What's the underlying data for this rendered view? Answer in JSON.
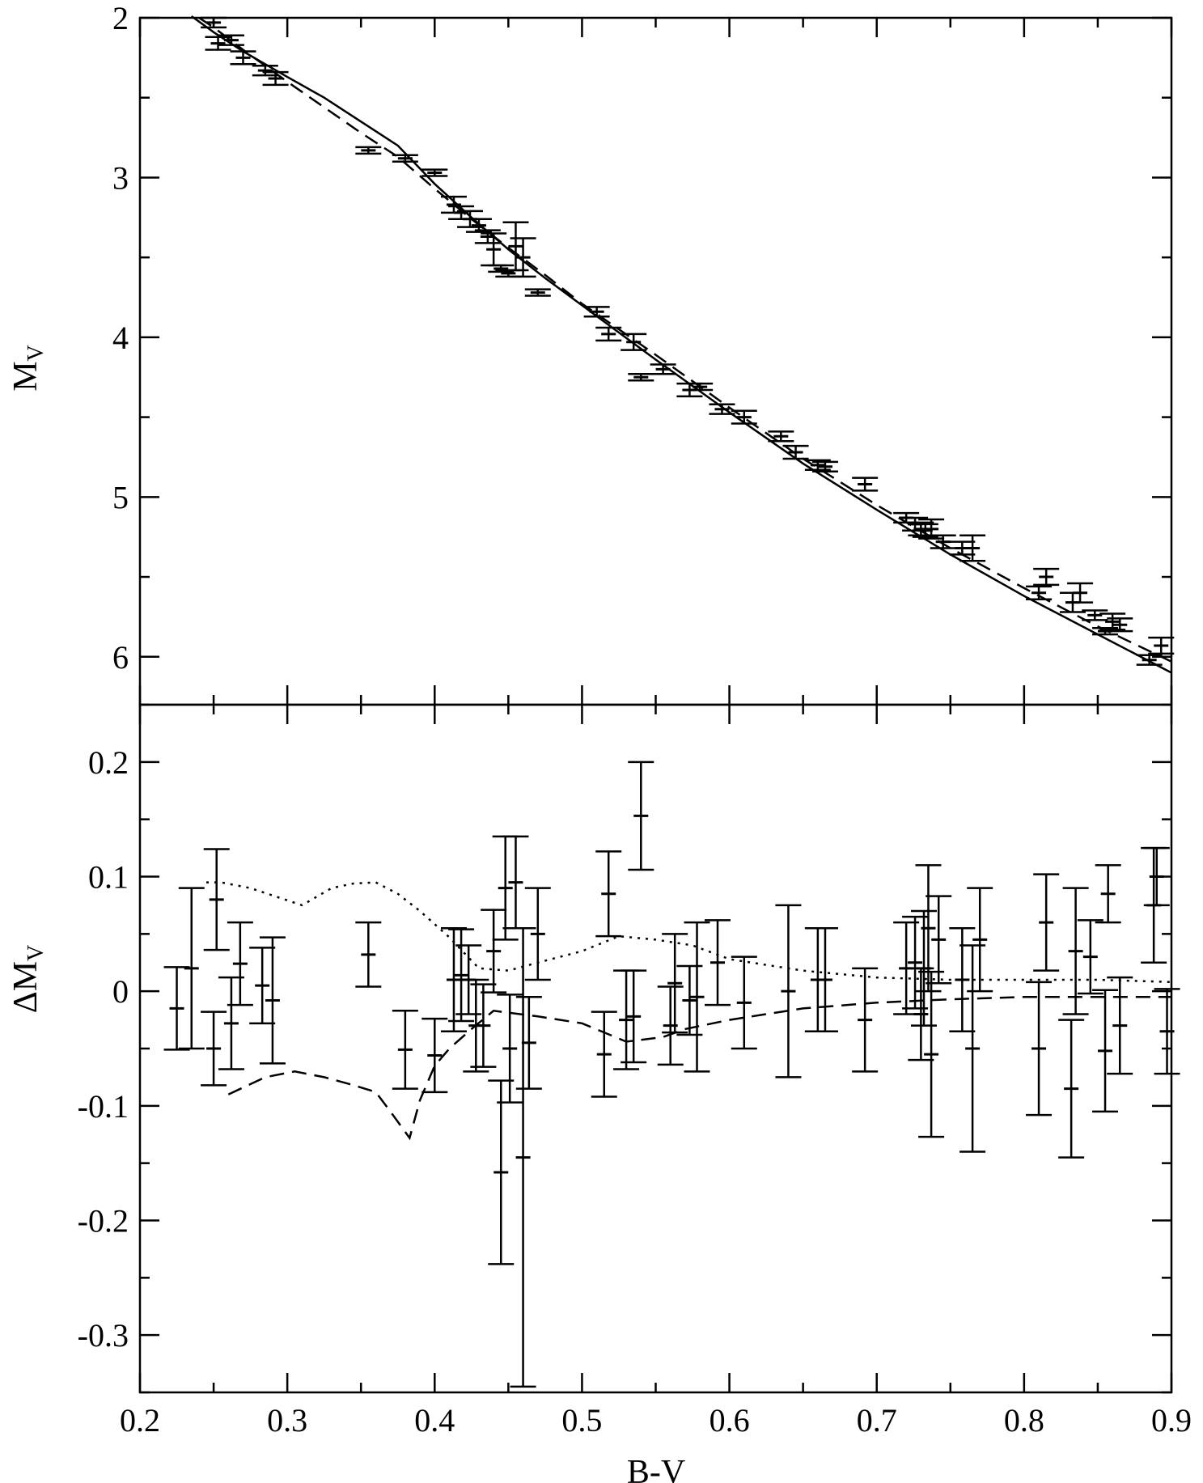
{
  "chart_data": [
    {
      "type": "scatter",
      "panel": "top",
      "xlabel": "",
      "ylabel": "M",
      "ylabel_sub": "V",
      "xlim": [
        0.2,
        0.9
      ],
      "ylim": [
        6.3,
        2.0
      ],
      "y_inverted": true,
      "xticks": [
        0.2,
        0.3,
        0.4,
        0.5,
        0.6,
        0.7,
        0.8,
        0.9
      ],
      "yticks": [
        2,
        3,
        4,
        5,
        6
      ],
      "ytick_labels": [
        "2",
        "3",
        "4",
        "5",
        "6"
      ],
      "points": [
        {
          "x": 0.25,
          "y": 2.03,
          "e": 0.03
        },
        {
          "x": 0.253,
          "y": 2.16,
          "e": 0.04
        },
        {
          "x": 0.262,
          "y": 2.14,
          "e": 0.03
        },
        {
          "x": 0.27,
          "y": 2.25,
          "e": 0.04
        },
        {
          "x": 0.285,
          "y": 2.33,
          "e": 0.03
        },
        {
          "x": 0.292,
          "y": 2.38,
          "e": 0.04
        },
        {
          "x": 0.355,
          "y": 2.83,
          "e": 0.02
        },
        {
          "x": 0.38,
          "y": 2.88,
          "e": 0.02
        },
        {
          "x": 0.4,
          "y": 2.97,
          "e": 0.02
        },
        {
          "x": 0.413,
          "y": 3.17,
          "e": 0.05
        },
        {
          "x": 0.418,
          "y": 3.22,
          "e": 0.04
        },
        {
          "x": 0.424,
          "y": 3.26,
          "e": 0.05
        },
        {
          "x": 0.43,
          "y": 3.3,
          "e": 0.04
        },
        {
          "x": 0.436,
          "y": 3.37,
          "e": 0.04
        },
        {
          "x": 0.44,
          "y": 3.45,
          "e": 0.1
        },
        {
          "x": 0.445,
          "y": 3.57,
          "e": 0.02
        },
        {
          "x": 0.45,
          "y": 3.6,
          "e": 0.02
        },
        {
          "x": 0.455,
          "y": 3.43,
          "e": 0.15
        },
        {
          "x": 0.46,
          "y": 3.5,
          "e": 0.12
        },
        {
          "x": 0.47,
          "y": 3.72,
          "e": 0.02
        },
        {
          "x": 0.51,
          "y": 3.84,
          "e": 0.03
        },
        {
          "x": 0.518,
          "y": 3.98,
          "e": 0.04
        },
        {
          "x": 0.535,
          "y": 4.03,
          "e": 0.05
        },
        {
          "x": 0.54,
          "y": 4.25,
          "e": 0.02
        },
        {
          "x": 0.555,
          "y": 4.2,
          "e": 0.03
        },
        {
          "x": 0.573,
          "y": 4.33,
          "e": 0.04
        },
        {
          "x": 0.58,
          "y": 4.31,
          "e": 0.02
        },
        {
          "x": 0.595,
          "y": 4.45,
          "e": 0.03
        },
        {
          "x": 0.61,
          "y": 4.5,
          "e": 0.04
        },
        {
          "x": 0.635,
          "y": 4.62,
          "e": 0.03
        },
        {
          "x": 0.645,
          "y": 4.72,
          "e": 0.04
        },
        {
          "x": 0.66,
          "y": 4.8,
          "e": 0.03
        },
        {
          "x": 0.665,
          "y": 4.81,
          "e": 0.03
        },
        {
          "x": 0.692,
          "y": 4.92,
          "e": 0.04
        },
        {
          "x": 0.72,
          "y": 5.13,
          "e": 0.03
        },
        {
          "x": 0.726,
          "y": 5.17,
          "e": 0.04
        },
        {
          "x": 0.73,
          "y": 5.2,
          "e": 0.04
        },
        {
          "x": 0.733,
          "y": 5.21,
          "e": 0.04
        },
        {
          "x": 0.737,
          "y": 5.2,
          "e": 0.06
        },
        {
          "x": 0.745,
          "y": 5.28,
          "e": 0.04
        },
        {
          "x": 0.758,
          "y": 5.32,
          "e": 0.04
        },
        {
          "x": 0.765,
          "y": 5.32,
          "e": 0.08
        },
        {
          "x": 0.81,
          "y": 5.6,
          "e": 0.04
        },
        {
          "x": 0.815,
          "y": 5.5,
          "e": 0.05
        },
        {
          "x": 0.833,
          "y": 5.66,
          "e": 0.06
        },
        {
          "x": 0.838,
          "y": 5.6,
          "e": 0.06
        },
        {
          "x": 0.848,
          "y": 5.74,
          "e": 0.03
        },
        {
          "x": 0.855,
          "y": 5.84,
          "e": 0.02
        },
        {
          "x": 0.86,
          "y": 5.78,
          "e": 0.05
        },
        {
          "x": 0.865,
          "y": 5.8,
          "e": 0.04
        },
        {
          "x": 0.885,
          "y": 6.02,
          "e": 0.03
        },
        {
          "x": 0.893,
          "y": 5.93,
          "e": 0.05
        }
      ],
      "series": [
        {
          "style": "solid",
          "x": [
            0.235,
            0.25,
            0.27,
            0.3,
            0.325,
            0.35,
            0.375,
            0.4,
            0.425,
            0.45,
            0.475,
            0.5,
            0.55,
            0.6,
            0.65,
            0.7,
            0.75,
            0.8,
            0.85,
            0.9
          ],
          "y": [
            1.99,
            2.09,
            2.21,
            2.37,
            2.5,
            2.65,
            2.8,
            3.04,
            3.25,
            3.45,
            3.63,
            3.8,
            4.14,
            4.47,
            4.79,
            5.08,
            5.36,
            5.62,
            5.86,
            6.1
          ]
        },
        {
          "style": "dashed",
          "x": [
            0.24,
            0.25,
            0.27,
            0.3,
            0.325,
            0.35,
            0.375,
            0.4,
            0.425,
            0.45,
            0.475,
            0.5,
            0.55,
            0.6,
            0.65,
            0.7,
            0.75,
            0.8,
            0.85,
            0.9
          ],
          "y": [
            2.0,
            2.06,
            2.2,
            2.4,
            2.56,
            2.72,
            2.87,
            3.07,
            3.26,
            3.44,
            3.61,
            3.79,
            4.11,
            4.44,
            4.76,
            5.05,
            5.32,
            5.57,
            5.81,
            6.03
          ]
        }
      ]
    },
    {
      "type": "scatter",
      "panel": "bottom",
      "xlabel": "B-V",
      "ylabel": "ΔM",
      "ylabel_sub": "V",
      "xlim": [
        0.2,
        0.9
      ],
      "ylim": [
        -0.35,
        0.25
      ],
      "xticks": [
        0.2,
        0.3,
        0.4,
        0.5,
        0.6,
        0.7,
        0.8,
        0.9
      ],
      "xtick_labels": [
        "0.2",
        "0.3",
        "0.4",
        "0.5",
        "0.6",
        "0.7",
        "0.8",
        "0.9"
      ],
      "yticks": [
        -0.3,
        -0.2,
        -0.1,
        0,
        0.1,
        0.2
      ],
      "ytick_labels": [
        "-0.3",
        "-0.2",
        "-0.1",
        "0",
        "0.1",
        "0.2"
      ],
      "points": [
        {
          "x": 0.225,
          "y": -0.015,
          "e": 0.036
        },
        {
          "x": 0.235,
          "y": 0.02,
          "e": 0.07
        },
        {
          "x": 0.25,
          "y": -0.05,
          "e": 0.032
        },
        {
          "x": 0.252,
          "y": 0.08,
          "e": 0.044
        },
        {
          "x": 0.262,
          "y": -0.028,
          "e": 0.04
        },
        {
          "x": 0.268,
          "y": 0.024,
          "e": 0.036
        },
        {
          "x": 0.283,
          "y": 0.005,
          "e": 0.033
        },
        {
          "x": 0.29,
          "y": -0.008,
          "e": 0.055
        },
        {
          "x": 0.355,
          "y": 0.032,
          "e": 0.028
        },
        {
          "x": 0.38,
          "y": -0.051,
          "e": 0.034
        },
        {
          "x": 0.4,
          "y": -0.056,
          "e": 0.032
        },
        {
          "x": 0.413,
          "y": 0.01,
          "e": 0.045
        },
        {
          "x": 0.418,
          "y": 0.014,
          "e": 0.04
        },
        {
          "x": 0.423,
          "y": 0.01,
          "e": 0.03
        },
        {
          "x": 0.428,
          "y": -0.03,
          "e": 0.04
        },
        {
          "x": 0.433,
          "y": -0.03,
          "e": 0.036
        },
        {
          "x": 0.44,
          "y": 0.035,
          "e": 0.036
        },
        {
          "x": 0.445,
          "y": -0.158,
          "e": 0.08
        },
        {
          "x": 0.448,
          "y": 0.09,
          "e": 0.045
        },
        {
          "x": 0.451,
          "y": -0.05,
          "e": 0.047
        },
        {
          "x": 0.455,
          "y": 0.095,
          "e": 0.04
        },
        {
          "x": 0.46,
          "y": -0.145,
          "e": 0.2
        },
        {
          "x": 0.464,
          "y": -0.045,
          "e": 0.04
        },
        {
          "x": 0.47,
          "y": 0.05,
          "e": 0.04
        },
        {
          "x": 0.515,
          "y": -0.055,
          "e": 0.037
        },
        {
          "x": 0.518,
          "y": 0.085,
          "e": 0.037
        },
        {
          "x": 0.53,
          "y": -0.025,
          "e": 0.043
        },
        {
          "x": 0.535,
          "y": -0.022,
          "e": 0.04
        },
        {
          "x": 0.54,
          "y": 0.153,
          "e": 0.047
        },
        {
          "x": 0.56,
          "y": -0.03,
          "e": 0.034
        },
        {
          "x": 0.563,
          "y": 0.007,
          "e": 0.043
        },
        {
          "x": 0.573,
          "y": -0.008,
          "e": 0.03
        },
        {
          "x": 0.578,
          "y": -0.005,
          "e": 0.065
        },
        {
          "x": 0.592,
          "y": 0.025,
          "e": 0.037
        },
        {
          "x": 0.61,
          "y": -0.01,
          "e": 0.04
        },
        {
          "x": 0.64,
          "y": 0.0,
          "e": 0.075
        },
        {
          "x": 0.66,
          "y": 0.01,
          "e": 0.045
        },
        {
          "x": 0.665,
          "y": 0.01,
          "e": 0.045
        },
        {
          "x": 0.692,
          "y": -0.025,
          "e": 0.045
        },
        {
          "x": 0.72,
          "y": 0.02,
          "e": 0.04
        },
        {
          "x": 0.726,
          "y": 0.025,
          "e": 0.04
        },
        {
          "x": 0.73,
          "y": -0.02,
          "e": 0.04
        },
        {
          "x": 0.732,
          "y": 0.02,
          "e": 0.05
        },
        {
          "x": 0.735,
          "y": 0.055,
          "e": 0.055
        },
        {
          "x": 0.737,
          "y": -0.055,
          "e": 0.072
        },
        {
          "x": 0.742,
          "y": 0.045,
          "e": 0.038
        },
        {
          "x": 0.758,
          "y": 0.01,
          "e": 0.045
        },
        {
          "x": 0.765,
          "y": -0.05,
          "e": 0.09
        },
        {
          "x": 0.77,
          "y": 0.045,
          "e": 0.045
        },
        {
          "x": 0.81,
          "y": -0.05,
          "e": 0.058
        },
        {
          "x": 0.815,
          "y": 0.06,
          "e": 0.042
        },
        {
          "x": 0.832,
          "y": -0.085,
          "e": 0.06
        },
        {
          "x": 0.835,
          "y": 0.035,
          "e": 0.055
        },
        {
          "x": 0.845,
          "y": 0.03,
          "e": 0.032
        },
        {
          "x": 0.855,
          "y": -0.052,
          "e": 0.053
        },
        {
          "x": 0.857,
          "y": 0.085,
          "e": 0.025
        },
        {
          "x": 0.865,
          "y": -0.03,
          "e": 0.042
        },
        {
          "x": 0.888,
          "y": 0.075,
          "e": 0.05
        },
        {
          "x": 0.89,
          "y": 0.1,
          "e": 0.025
        },
        {
          "x": 0.897,
          "y": -0.035,
          "e": 0.037
        }
      ],
      "series": [
        {
          "style": "dotted",
          "x": [
            0.245,
            0.255,
            0.275,
            0.31,
            0.33,
            0.345,
            0.36,
            0.375,
            0.39,
            0.41,
            0.43,
            0.45,
            0.47,
            0.5,
            0.525,
            0.55,
            0.575,
            0.6,
            0.65,
            0.7,
            0.75,
            0.8,
            0.85,
            0.9
          ],
          "y": [
            0.095,
            0.095,
            0.09,
            0.075,
            0.09,
            0.094,
            0.095,
            0.085,
            0.07,
            0.047,
            0.02,
            0.018,
            0.025,
            0.035,
            0.048,
            0.045,
            0.04,
            0.028,
            0.018,
            0.012,
            0.01,
            0.01,
            0.01,
            0.008
          ]
        },
        {
          "style": "dashed",
          "x": [
            0.26,
            0.285,
            0.305,
            0.325,
            0.345,
            0.36,
            0.37,
            0.383,
            0.39,
            0.4,
            0.41,
            0.425,
            0.44,
            0.47,
            0.5,
            0.53,
            0.555,
            0.57,
            0.6,
            0.65,
            0.7,
            0.75,
            0.8,
            0.85,
            0.9
          ],
          "y": [
            -0.09,
            -0.075,
            -0.07,
            -0.075,
            -0.082,
            -0.088,
            -0.105,
            -0.128,
            -0.095,
            -0.065,
            -0.05,
            -0.033,
            -0.017,
            -0.022,
            -0.028,
            -0.044,
            -0.04,
            -0.033,
            -0.025,
            -0.015,
            -0.01,
            -0.007,
            -0.005,
            -0.005,
            -0.005
          ]
        }
      ]
    }
  ]
}
